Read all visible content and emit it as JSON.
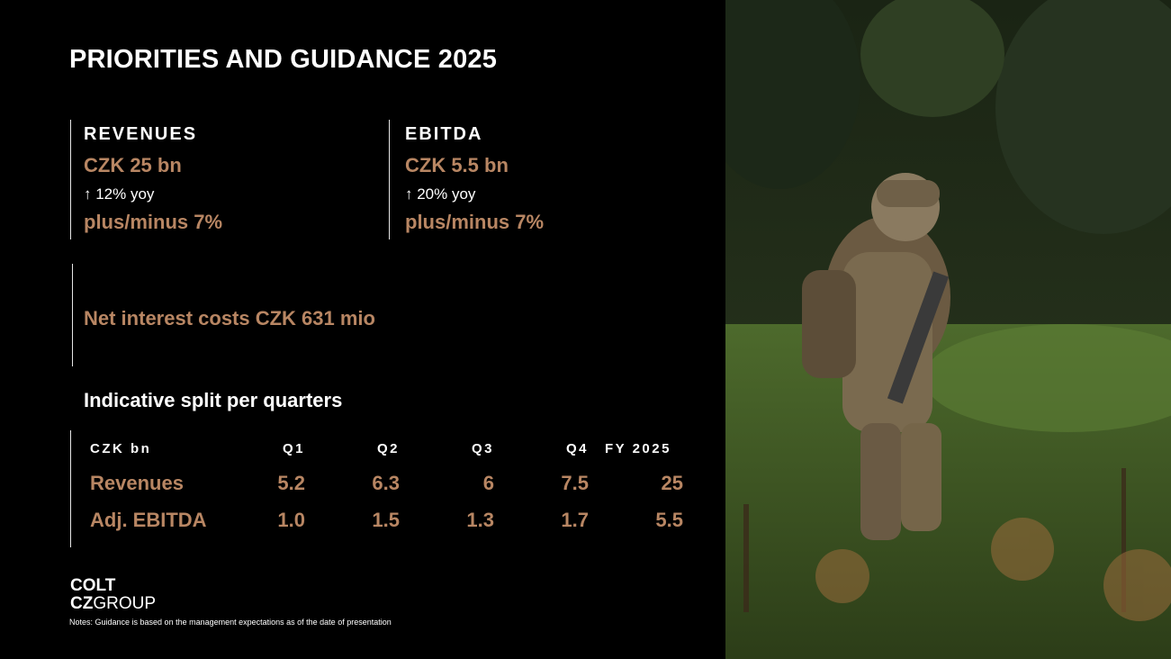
{
  "title": "PRIORITIES AND GUIDANCE 2025",
  "revenues": {
    "heading": "REVENUES",
    "value": "CZK 25 bn",
    "yoy": "↑ 12% yoy",
    "range": "plus/minus 7%"
  },
  "ebitda": {
    "heading": "EBITDA",
    "value": "CZK 5.5 bn",
    "yoy": "↑ 20% yoy",
    "range": "plus/minus 7%"
  },
  "net_interest": "Net interest costs CZK 631 mio",
  "split": {
    "title": "Indicative split per quarters",
    "headers": [
      "CZK bn",
      "Q1",
      "Q2",
      "Q3",
      "Q4",
      "FY 2025"
    ],
    "rows": [
      {
        "label": "Revenues",
        "values": [
          "5.2",
          "6.3",
          "6",
          "7.5",
          "25"
        ]
      },
      {
        "label": "Adj. EBITDA",
        "values": [
          "1.0",
          "1.5",
          "1.3",
          "1.7",
          "5.5"
        ]
      }
    ]
  },
  "logo": {
    "line1": "COLT",
    "line2a": "CZ",
    "line2b": "GROUP"
  },
  "notes": "Notes:   Guidance is based on the management expectations as of the date of presentation",
  "colors": {
    "accent": "#b88663",
    "background": "#000000",
    "text": "#ffffff"
  }
}
